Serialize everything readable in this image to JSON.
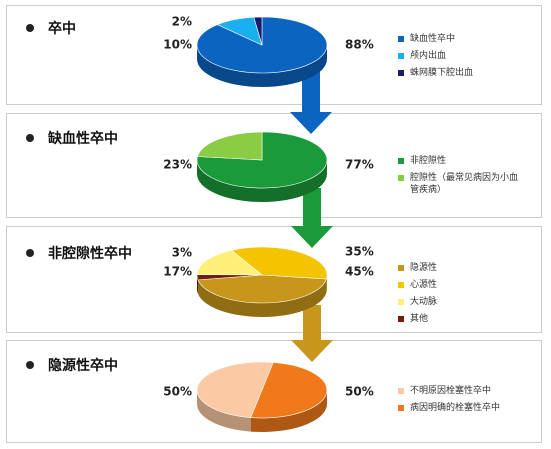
{
  "chart_data": [
    {
      "type": "pie",
      "title": "卒中",
      "categories": [
        "缺血性卒中",
        "颅内出血",
        "蛛网膜下腔出血"
      ],
      "values": [
        88,
        10,
        2
      ],
      "value_labels": [
        "88%",
        "10%",
        "2%"
      ],
      "colors": [
        "#0a64c0",
        "#1ab0f0",
        "#1a1a6a"
      ]
    },
    {
      "type": "pie",
      "title": "缺血性卒中",
      "categories": [
        "非腔隙性",
        "腔隙性（最常见病因为小血管疾病）"
      ],
      "values": [
        77,
        23
      ],
      "value_labels": [
        "77%",
        "23%"
      ],
      "colors": [
        "#1a9a3a",
        "#8acc44"
      ]
    },
    {
      "type": "pie",
      "title": "非腔隙性卒中",
      "categories": [
        "隐源性",
        "心源性",
        "大动脉",
        "其他"
      ],
      "values": [
        45,
        35,
        17,
        3
      ],
      "value_labels": [
        "45%",
        "35%",
        "17%",
        "3%"
      ],
      "colors": [
        "#c8961a",
        "#f5c400",
        "#fff07a",
        "#7a1a0a"
      ]
    },
    {
      "type": "pie",
      "title": "隐源性卒中",
      "categories": [
        "不明原因栓塞性卒中",
        "病因明确的栓塞性卒中"
      ],
      "values": [
        50,
        50
      ],
      "value_labels": [
        "50%",
        "50%"
      ],
      "colors": [
        "#fbc9a3",
        "#f07a1a"
      ]
    }
  ]
}
